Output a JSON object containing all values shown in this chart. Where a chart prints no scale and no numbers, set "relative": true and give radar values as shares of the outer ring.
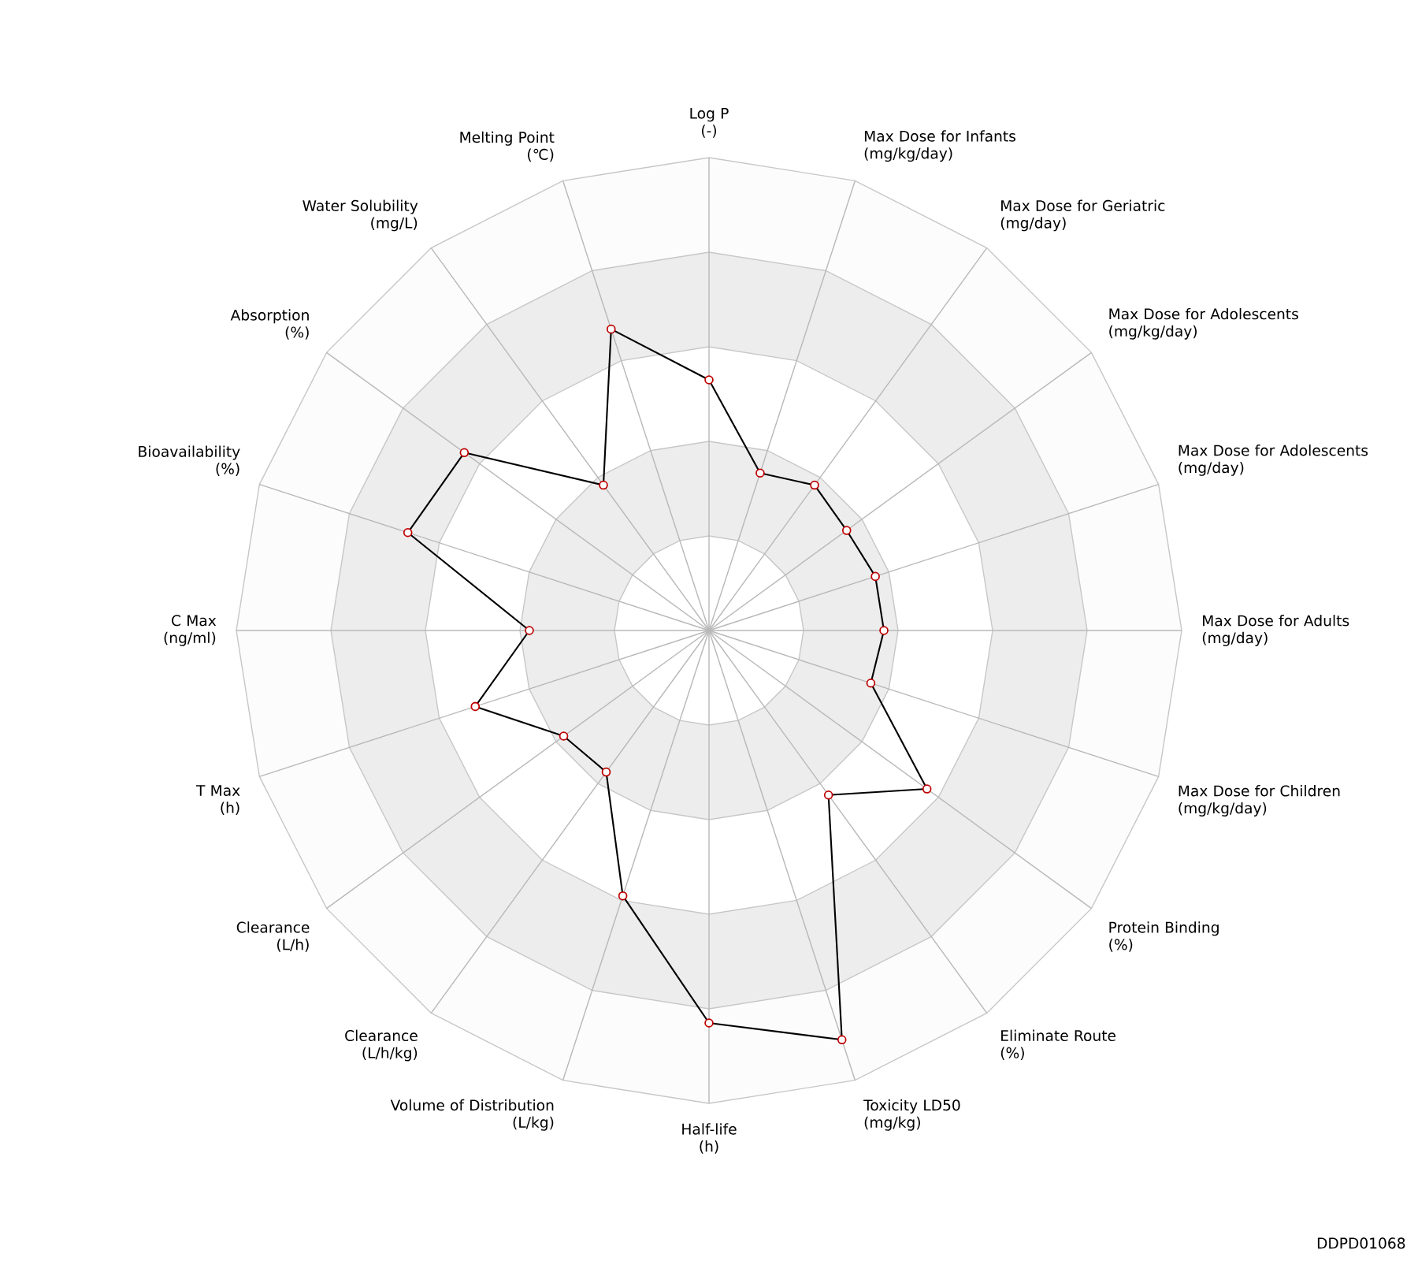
{
  "chart_data": {
    "type": "radar",
    "relative": true,
    "grid": true,
    "marker": "circle",
    "categories": [
      "Log P\n(-)",
      "Max Dose for Infants\n(mg/kg/day)",
      "Max Dose for Geriatric\n(mg/day)",
      "Max Dose for Adolescents\n(mg/kg/day)",
      "Max Dose for Adolescents\n(mg/day)",
      "Max Dose for Adults\n(mg/day)",
      "Max Dose for Children\n(mg/kg/day)",
      "Protein Binding\n(%)",
      "Eliminate Route\n(%)",
      "Toxicity LD50\n(mg/kg)",
      "Half-life\n(h)",
      "Volume of Distribution\n(L/kg)",
      "Clearance\n(L/h/kg)",
      "Clearance\n(L/h)",
      "T Max\n(h)",
      "C Max\n(ng/ml)",
      "Bioavailability\n(%)",
      "Absorption\n(%)",
      "Water Solubility\n(mg/L)",
      "Melting Point\n(℃)"
    ],
    "series": [
      {
        "color": "#000000",
        "values": [
          0.53,
          0.35,
          0.38,
          0.36,
          0.37,
          0.37,
          0.36,
          0.57,
          0.43,
          0.91,
          0.83,
          0.59,
          0.37,
          0.38,
          0.52,
          0.38,
          0.67,
          0.64,
          0.38,
          0.67
        ]
      }
    ],
    "annotations": [
      "DDPD01068"
    ]
  }
}
